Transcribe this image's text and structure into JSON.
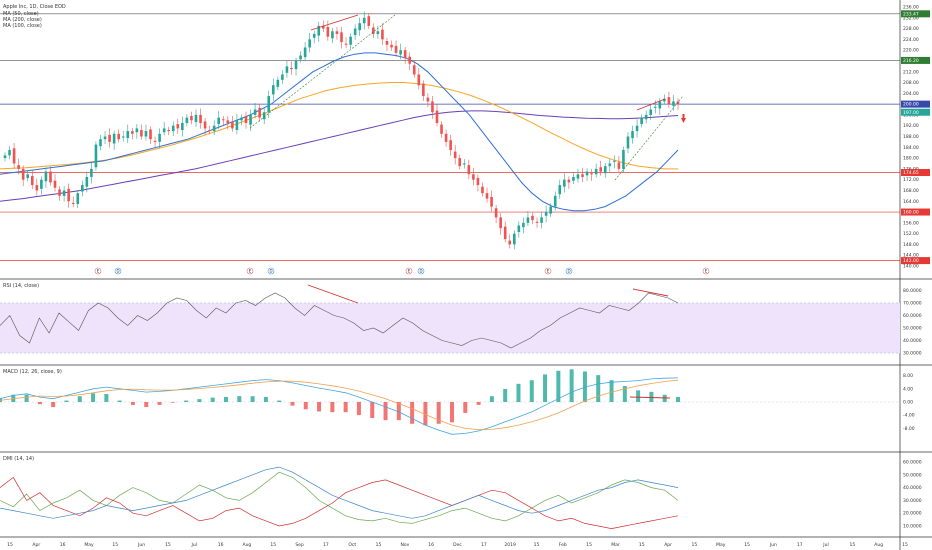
{
  "header": {
    "symbol_line": "Apple Inc, 1D, Close EOD",
    "ma1": "MA (50, close)",
    "ma2": "MA (200, close)",
    "ma3": "MA (100, close)"
  },
  "panes": {
    "rsi_label": "RSI (14, close)",
    "macd_label": "MACD (12, 26, close, 9)",
    "dmi_label": "DMI (14, 14)"
  },
  "colors": {
    "up": "#26a69a",
    "down": "#ef5350",
    "ma50": "#2e6fd6",
    "ma100": "#f5a623",
    "ma200": "#6a3fb5",
    "level_red": "#e53935",
    "level_blue": "#3949ab",
    "level_dark": "#333333",
    "rsi_band": "#efe3fb",
    "macd_line": "#3fa7e0",
    "signal_line": "#f0a050",
    "dmi_plus": "#6aa84f",
    "dmi_minus": "#d32f2f",
    "adx": "#3d85c6"
  },
  "price_axis": {
    "ticks": [
      "236.00",
      "232.00",
      "228.00",
      "224.00",
      "220.00",
      "216.00",
      "212.00",
      "208.00",
      "204.00",
      "200.00",
      "196.00",
      "192.00",
      "188.00",
      "184.00",
      "180.00",
      "176.00",
      "172.00",
      "168.00",
      "164.00",
      "160.00",
      "156.00",
      "152.00",
      "148.00",
      "144.00",
      "140.00"
    ],
    "level_labels": [
      {
        "text": "233.47",
        "color": "#2e7d32",
        "price": 233.47
      },
      {
        "text": "216.20",
        "color": "#2e7d32",
        "price": 216.2
      },
      {
        "text": "200.00",
        "color": "#3949ab",
        "price": 200.0
      },
      {
        "text": "197.00",
        "color": "#26a69a",
        "price": 197.0
      },
      {
        "text": "174.65",
        "color": "#e53935",
        "price": 174.65
      },
      {
        "text": "160.00",
        "color": "#e53935",
        "price": 160.0
      },
      {
        "text": "142.00",
        "color": "#e53935",
        "price": 142.0
      }
    ]
  },
  "rsi_axis": {
    "ticks": [
      "80.0000",
      "70.0000",
      "60.0000",
      "50.0000",
      "40.0000",
      "30.0000"
    ]
  },
  "macd_axis": {
    "ticks": [
      "8.00",
      "4.00",
      "0.00",
      "-4.00",
      "-8.00"
    ]
  },
  "dmi_axis": {
    "ticks": [
      "60.0000",
      "50.0000",
      "40.0000",
      "30.0000",
      "20.0000",
      "10.0000"
    ]
  },
  "time_axis": {
    "labels": [
      "15",
      "Apr",
      "16",
      "May",
      "15",
      "Jun",
      "15",
      "Jul",
      "16",
      "Aug",
      "15",
      "Sep",
      "17",
      "Oct",
      "15",
      "Nov",
      "16",
      "Dec",
      "17",
      "2019",
      "15",
      "Feb",
      "15",
      "Mar",
      "15",
      "Apr",
      "15",
      "May",
      "15",
      "Jun",
      "17",
      "Jul",
      "15",
      "Aug",
      "15"
    ]
  },
  "events": {
    "markers": [
      {
        "type": "E",
        "x": 98
      },
      {
        "type": "D",
        "x": 118
      },
      {
        "type": "E",
        "x": 250
      },
      {
        "type": "D",
        "x": 271
      },
      {
        "type": "E",
        "x": 409
      },
      {
        "type": "D",
        "x": 421
      },
      {
        "type": "E",
        "x": 548
      },
      {
        "type": "D",
        "x": 569
      },
      {
        "type": "E",
        "x": 706
      }
    ]
  },
  "chart_data": {
    "type": "candlestick",
    "title": "Apple Inc, 1D, Close EOD",
    "ylim": [
      138,
      238
    ],
    "horizontal_levels": [
      233.47,
      216.2,
      200.0,
      174.65,
      160.0,
      142.0
    ],
    "closes": [
      181,
      183,
      178,
      176,
      172,
      174,
      170,
      168,
      172,
      175,
      171,
      169,
      166,
      168,
      164,
      163,
      167,
      170,
      173,
      176,
      185,
      187,
      188,
      186,
      189,
      187,
      188,
      190,
      189,
      191,
      188,
      190,
      187,
      186,
      189,
      191,
      190,
      192,
      191,
      193,
      195,
      194,
      196,
      193,
      191,
      190,
      192,
      195,
      194,
      193,
      191,
      194,
      195,
      193,
      196,
      198,
      195,
      197,
      203,
      207,
      209,
      211,
      214,
      213,
      216,
      218,
      221,
      224,
      226,
      229,
      228,
      225,
      227,
      226,
      223,
      222,
      225,
      228,
      230,
      232,
      229,
      226,
      227,
      224,
      222,
      221,
      219,
      220,
      217,
      215,
      211,
      207,
      203,
      201,
      197,
      193,
      189,
      186,
      183,
      180,
      177,
      178,
      174,
      172,
      170,
      167,
      165,
      162,
      158,
      154,
      150,
      148,
      152,
      155,
      156,
      158,
      157,
      156,
      158,
      160,
      162,
      166,
      170,
      172,
      171,
      173,
      174,
      173,
      175,
      174,
      176,
      175,
      177,
      178,
      179,
      176,
      183,
      188,
      190,
      192,
      195,
      196,
      198,
      199,
      201,
      202,
      200,
      201,
      200
    ],
    "ma50": [
      174,
      174.5,
      175,
      175.5,
      176,
      176.5,
      177,
      177.5,
      178,
      178.5,
      179,
      180,
      181,
      182,
      183,
      184,
      185,
      186,
      187,
      188.5,
      190,
      191.5,
      193,
      194.5,
      196,
      198,
      200,
      203,
      206,
      209,
      212,
      214,
      216,
      217.5,
      218.5,
      219,
      219,
      218.5,
      218,
      217,
      215,
      212,
      208,
      204,
      200,
      196,
      191,
      186,
      181,
      176,
      171,
      167,
      164,
      162,
      161,
      160.5,
      160.5,
      161,
      162,
      164,
      166,
      169,
      172,
      175,
      179,
      183
    ],
    "ma100": [
      176,
      176.2,
      176.4,
      176.8,
      177.2,
      177.6,
      178,
      178.6,
      179.2,
      180,
      181,
      182.2,
      183.4,
      184.6,
      186,
      187.4,
      189,
      190.6,
      192.4,
      194.2,
      196,
      198,
      200,
      202,
      203.5,
      205,
      206,
      206.8,
      207.4,
      207.8,
      208,
      208,
      207.6,
      207,
      206,
      204.8,
      203.4,
      201.6,
      199.6,
      197.4,
      195,
      192.6,
      190,
      187.6,
      185.2,
      183,
      181,
      179.4,
      178,
      177,
      176.4,
      176,
      176
    ],
    "ma200": [
      164,
      164.5,
      165,
      165.6,
      166.2,
      166.8,
      167.4,
      168,
      168.8,
      169.6,
      170.4,
      171.2,
      172,
      172.8,
      173.6,
      174.4,
      175.2,
      176,
      177,
      178,
      179,
      180,
      181,
      182,
      183,
      184,
      185,
      186,
      187,
      188,
      189,
      190,
      191,
      192,
      193,
      194,
      195,
      195.8,
      196.5,
      197,
      197.3,
      197.5,
      197.5,
      197.3,
      197,
      196.6,
      196.2,
      195.8,
      195.5,
      195.2,
      195,
      194.8,
      194.7,
      194.6,
      194.6,
      194.7,
      194.9,
      195.2,
      195.5,
      195.8
    ]
  },
  "rsi_data": [
    52,
    60,
    44,
    38,
    58,
    46,
    62,
    55,
    48,
    64,
    70,
    66,
    58,
    52,
    60,
    56,
    62,
    70,
    74,
    72,
    64,
    58,
    66,
    62,
    70,
    72,
    68,
    74,
    78,
    74,
    66,
    60,
    68,
    64,
    60,
    58,
    54,
    48,
    50,
    46,
    52,
    58,
    54,
    48,
    44,
    40,
    38,
    36,
    40,
    42,
    40,
    38,
    34,
    38,
    42,
    48,
    52,
    58,
    62,
    66,
    64,
    62,
    68,
    66,
    64,
    70,
    78,
    76,
    74,
    70
  ],
  "macd_data": {
    "macd": [
      1,
      2,
      2.5,
      1.5,
      1,
      2,
      3,
      4,
      4.5,
      4,
      3.5,
      3,
      3.2,
      3.5,
      4,
      4.5,
      5,
      5.5,
      6,
      6.5,
      6.8,
      6.5,
      5.8,
      5,
      4.2,
      3.5,
      2.8,
      1.5,
      0,
      -1.5,
      -3,
      -5,
      -7,
      -8.5,
      -9.8,
      -9.5,
      -8.8,
      -7.5,
      -6,
      -4.5,
      -3,
      -1,
      1,
      3,
      4.5,
      5.5,
      6,
      6.2,
      6.5,
      7,
      7.2,
      7.3
    ],
    "signal": [
      0.5,
      1,
      1.5,
      1.8,
      1.7,
      1.8,
      2.2,
      2.8,
      3.4,
      3.8,
      3.9,
      3.7,
      3.6,
      3.6,
      3.8,
      4.1,
      4.4,
      4.8,
      5.2,
      5.7,
      6.1,
      6.3,
      6.3,
      6,
      5.5,
      4.9,
      4.2,
      3.3,
      2.2,
      1,
      -0.5,
      -2,
      -3.8,
      -5.5,
      -7,
      -8,
      -8.4,
      -8.3,
      -7.8,
      -7,
      -6,
      -4.8,
      -3.3,
      -1.5,
      0.3,
      1.8,
      3,
      4,
      4.9,
      5.6,
      6.2,
      6.6
    ]
  },
  "dmi_data": {
    "plus_di": [
      30,
      25,
      35,
      22,
      28,
      32,
      38,
      30,
      26,
      34,
      40,
      36,
      30,
      28,
      35,
      42,
      38,
      32,
      30,
      36,
      44,
      52,
      48,
      40,
      30,
      24,
      18,
      15,
      14,
      16,
      13,
      12,
      15,
      18,
      22,
      24,
      20,
      16,
      14,
      18,
      24,
      30,
      34,
      28,
      32,
      36,
      42,
      46,
      44,
      40,
      38,
      30
    ],
    "minus_di": [
      40,
      48,
      30,
      36,
      26,
      22,
      18,
      24,
      32,
      28,
      20,
      18,
      22,
      26,
      20,
      14,
      16,
      22,
      24,
      18,
      14,
      10,
      12,
      16,
      22,
      28,
      36,
      40,
      44,
      46,
      42,
      38,
      34,
      30,
      26,
      30,
      34,
      38,
      36,
      30,
      24,
      18,
      14,
      16,
      12,
      10,
      8,
      10,
      12,
      14,
      16,
      18
    ],
    "adx": [
      24,
      22,
      20,
      18,
      16,
      18,
      20,
      22,
      26,
      24,
      22,
      24,
      26,
      28,
      30,
      34,
      38,
      42,
      46,
      50,
      54,
      56,
      52,
      46,
      40,
      34,
      30,
      26,
      22,
      20,
      18,
      16,
      18,
      22,
      26,
      30,
      34,
      30,
      26,
      22,
      20,
      22,
      26,
      30,
      34,
      38,
      40,
      44,
      46,
      44,
      42,
      40
    ]
  }
}
